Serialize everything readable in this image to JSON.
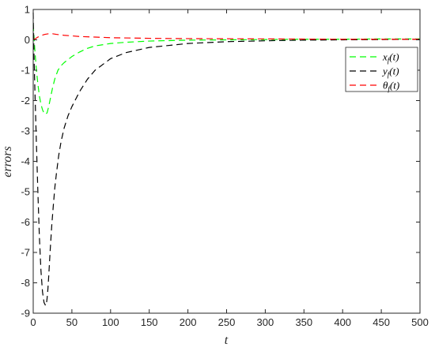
{
  "chart_data": {
    "type": "line",
    "xlabel": "t",
    "ylabel": "errors",
    "xlim": [
      0,
      500
    ],
    "ylim": [
      -9,
      1
    ],
    "xticks": [
      0,
      50,
      100,
      150,
      200,
      250,
      300,
      350,
      400,
      450,
      500
    ],
    "yticks": [
      1,
      0,
      -1,
      -2,
      -3,
      -4,
      -5,
      -6,
      -7,
      -8,
      -9
    ],
    "grid": false,
    "legend_position": "top-right",
    "series": [
      {
        "name": "x_f(t)",
        "color": "#00ff00",
        "style": "dashed",
        "x": [
          0,
          2,
          4,
          6,
          8,
          10,
          12,
          14,
          16,
          18,
          20,
          22,
          25,
          28,
          32,
          36,
          40,
          45,
          50,
          60,
          70,
          80,
          100,
          120,
          150,
          200,
          250,
          300,
          350,
          400,
          450,
          500
        ],
        "values": [
          0.5,
          -0.3,
          -0.95,
          -1.45,
          -1.85,
          -2.12,
          -2.3,
          -2.42,
          -2.45,
          -2.4,
          -2.2,
          -1.95,
          -1.58,
          -1.28,
          -1.0,
          -0.85,
          -0.75,
          -0.65,
          -0.55,
          -0.4,
          -0.28,
          -0.2,
          -0.12,
          -0.08,
          -0.04,
          -0.01,
          0.0,
          0.01,
          0.02,
          0.02,
          0.03,
          0.03
        ]
      },
      {
        "name": "y_f(t)",
        "color": "#000000",
        "style": "dashed",
        "x": [
          0,
          1,
          2,
          4,
          6,
          8,
          10,
          12,
          14,
          16,
          17,
          18,
          19,
          20,
          22,
          24,
          26,
          28,
          30,
          33,
          36,
          40,
          45,
          50,
          60,
          70,
          80,
          100,
          120,
          150,
          200,
          250,
          300,
          350,
          400,
          450,
          500
        ],
        "values": [
          0.9,
          -0.5,
          -1.5,
          -3.3,
          -5.0,
          -6.5,
          -7.6,
          -8.3,
          -8.65,
          -8.75,
          -8.7,
          -8.5,
          -8.2,
          -7.8,
          -6.9,
          -6.1,
          -5.45,
          -4.85,
          -4.4,
          -3.8,
          -3.35,
          -2.9,
          -2.5,
          -2.2,
          -1.7,
          -1.3,
          -1.0,
          -0.62,
          -0.42,
          -0.25,
          -0.12,
          -0.06,
          -0.03,
          -0.01,
          0.0,
          0.01,
          0.02
        ]
      },
      {
        "name": "θ_f(t)",
        "color": "#ff0000",
        "style": "dashed",
        "x": [
          0,
          3,
          6,
          10,
          15,
          20,
          25,
          30,
          40,
          50,
          60,
          80,
          100,
          150,
          200,
          300,
          400,
          500
        ],
        "values": [
          0.0,
          0.04,
          0.09,
          0.14,
          0.18,
          0.2,
          0.2,
          0.18,
          0.15,
          0.13,
          0.11,
          0.09,
          0.07,
          0.05,
          0.04,
          0.03,
          0.02,
          0.02
        ]
      }
    ]
  }
}
